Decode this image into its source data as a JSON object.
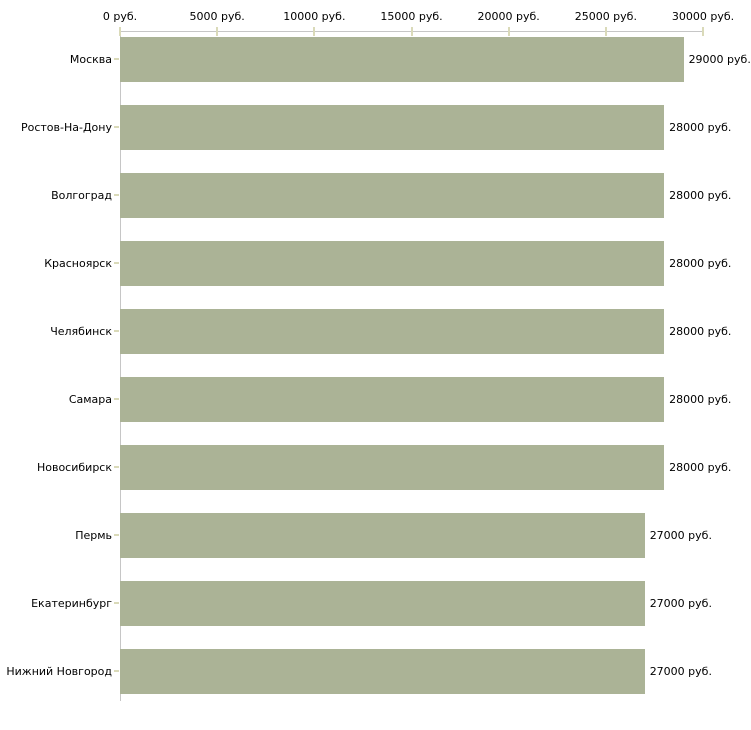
{
  "chart_data": {
    "type": "bar",
    "orientation": "horizontal",
    "title": "",
    "xlabel": "",
    "ylabel": "",
    "unit": "руб.",
    "grid": false,
    "legend": false,
    "xlim": [
      0,
      30000
    ],
    "x_ticks": [
      0,
      5000,
      10000,
      15000,
      20000,
      25000,
      30000
    ],
    "x_tick_labels": [
      "0 руб.",
      "5000 руб.",
      "10000 руб.",
      "15000 руб.",
      "20000 руб.",
      "25000 руб.",
      "30000 руб."
    ],
    "categories": [
      "Москва",
      "Ростов-На-Дону",
      "Волгоград",
      "Красноярск",
      "Челябинск",
      "Самара",
      "Новосибирск",
      "Пермь",
      "Екатеринбург",
      "Нижний Новгород"
    ],
    "values": [
      29000,
      28000,
      28000,
      28000,
      28000,
      28000,
      28000,
      27000,
      27000,
      27000
    ],
    "value_labels": [
      "29000 руб.",
      "28000 руб.",
      "28000 руб.",
      "28000 руб.",
      "28000 руб.",
      "28000 руб.",
      "28000 руб.",
      "27000 руб.",
      "27000 руб.",
      "27000 руб."
    ],
    "colors": {
      "bar": "#abb396",
      "axis_line": "#c6c6c6",
      "tick_mark": "#dadab9",
      "text": "#000000",
      "background": "#ffffff"
    }
  }
}
